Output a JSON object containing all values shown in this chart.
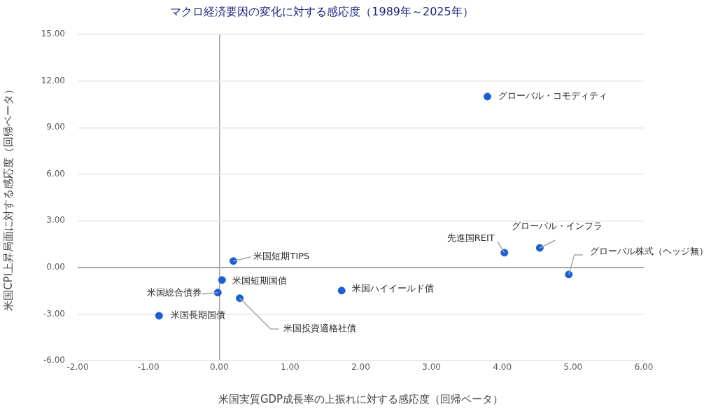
{
  "chart_data": {
    "type": "scatter",
    "title": "マクロ経済要因の変化に対する感応度（1989年～2025年）",
    "xlabel": "米国実質GDP成長率の上振れに対する感応度（回帰ベータ）",
    "ylabel": "米国CPI上昇局面に対する感応度（回帰ベータ）",
    "x": [
      3.79,
      4.03,
      4.53,
      4.94,
      1.73,
      0.2,
      0.04,
      -0.02,
      0.29,
      -0.85
    ],
    "series": [
      {
        "color": "#1a5fd8",
        "values": [
          11.0,
          0.95,
          1.26,
          -0.45,
          -1.49,
          0.41,
          -0.81,
          -1.62,
          -1.98,
          -3.11
        ]
      }
    ],
    "annotations": [
      {
        "text": "グローバル・コモディティ",
        "x": 3.79,
        "y": 11.0
      },
      {
        "text": "先進国REIT",
        "x": 4.03,
        "y": 0.95
      },
      {
        "text": "グローバル・インフラ",
        "x": 4.53,
        "y": 1.26
      },
      {
        "text": "グローバル株式（ヘッジ無）",
        "x": 4.94,
        "y": -0.45
      },
      {
        "text": "米国ハイイールド債",
        "x": 1.73,
        "y": -1.49
      },
      {
        "text": "米国短期TIPS",
        "x": 0.2,
        "y": 0.41
      },
      {
        "text": "米国短期国債",
        "x": 0.04,
        "y": -0.81
      },
      {
        "text": "米国総合債券",
        "x": -0.02,
        "y": -1.62
      },
      {
        "text": "米国投資適格社債",
        "x": 0.29,
        "y": -1.98
      },
      {
        "text": "米国長期国債",
        "x": -0.85,
        "y": -3.11
      }
    ],
    "xlim": [
      -2,
      6
    ],
    "xticks": [
      {
        "value": -2,
        "label": "-2.00"
      },
      {
        "value": -1,
        "label": "-1.00"
      },
      {
        "value": 0,
        "label": "0.00"
      },
      {
        "value": 1,
        "label": "1.00"
      },
      {
        "value": 2,
        "label": "2.00"
      },
      {
        "value": 3,
        "label": "3.00"
      },
      {
        "value": 4,
        "label": "4.00"
      },
      {
        "value": 5,
        "label": "5.00"
      },
      {
        "value": 6,
        "label": "6.00"
      }
    ],
    "ylim": [
      -6,
      15
    ],
    "yticks": [
      {
        "value": -6,
        "label": "-6.00"
      },
      {
        "value": -3,
        "label": "-3.00"
      },
      {
        "value": 0,
        "label": "0.00"
      },
      {
        "value": 3,
        "label": "3.00"
      },
      {
        "value": 6,
        "label": "6.00"
      },
      {
        "value": 9,
        "label": "9.00"
      },
      {
        "value": 12,
        "label": "12.00"
      },
      {
        "value": 15,
        "label": "15.00"
      }
    ],
    "grid": "y",
    "legend": false,
    "marker": "circle"
  }
}
